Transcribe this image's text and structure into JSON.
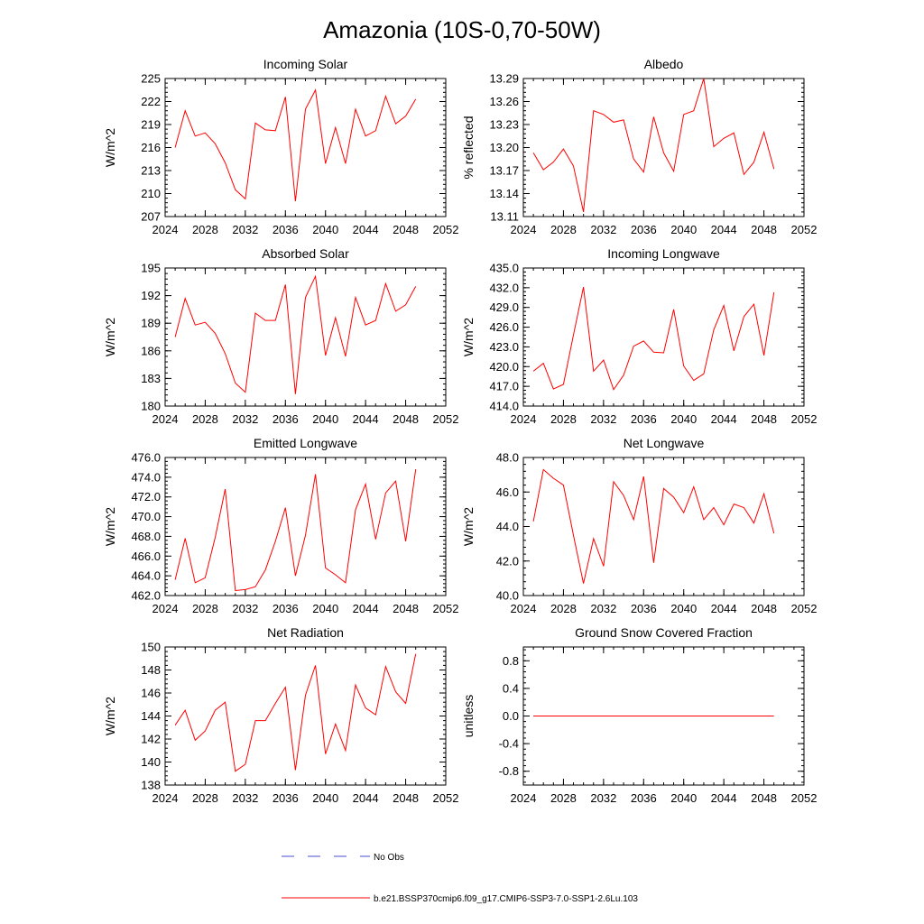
{
  "title": "Amazonia (10S-0,70-50W)",
  "legend": {
    "obs_label": "No Obs",
    "model_label": "b.e21.BSSP370cmip6.f09_g17.CMIP6-SSP3-7.0-SSP1-2.6Lu.103",
    "obs_color": "#4b4bd6",
    "model_color": "#ff0000"
  },
  "chart_data": [
    {
      "type": "line",
      "title": "Incoming Solar",
      "ylabel": "W/m^2",
      "xlim": [
        2024,
        2052
      ],
      "xticks": [
        2024,
        2028,
        2032,
        2036,
        2040,
        2044,
        2048,
        2052
      ],
      "ylim": [
        207,
        225
      ],
      "yticks": [
        "207",
        "210",
        "213",
        "216",
        "219",
        "222",
        "225"
      ],
      "x": [
        2025,
        2026,
        2027,
        2028,
        2029,
        2030,
        2031,
        2032,
        2033,
        2034,
        2035,
        2036,
        2037,
        2038,
        2039,
        2040,
        2041,
        2042,
        2043,
        2044,
        2045,
        2046,
        2047,
        2048,
        2049
      ],
      "values": [
        216.0,
        220.8,
        217.5,
        217.9,
        216.5,
        214.0,
        210.5,
        209.3,
        219.2,
        218.3,
        218.2,
        222.6,
        209.0,
        221.0,
        223.5,
        213.9,
        218.6,
        213.9,
        221.0,
        217.5,
        218.2,
        222.7,
        219.1,
        220.1,
        222.3
      ]
    },
    {
      "type": "line",
      "title": "Albedo",
      "ylabel": "% reflected",
      "xlim": [
        2024,
        2052
      ],
      "xticks": [
        2024,
        2028,
        2032,
        2036,
        2040,
        2044,
        2048,
        2052
      ],
      "ylim": [
        13.11,
        13.29
      ],
      "yticks": [
        "13.11",
        "13.14",
        "13.17",
        "13.20",
        "13.23",
        "13.26",
        "13.29"
      ],
      "x": [
        2025,
        2026,
        2027,
        2028,
        2029,
        2030,
        2031,
        2032,
        2033,
        2034,
        2035,
        2036,
        2037,
        2038,
        2039,
        2040,
        2041,
        2042,
        2043,
        2044,
        2045,
        2046,
        2047,
        2048,
        2049
      ],
      "values": [
        13.193,
        13.171,
        13.181,
        13.198,
        13.176,
        13.116,
        13.248,
        13.243,
        13.233,
        13.236,
        13.185,
        13.168,
        13.24,
        13.193,
        13.169,
        13.243,
        13.248,
        13.29,
        13.201,
        13.212,
        13.219,
        13.165,
        13.181,
        13.22,
        13.172
      ]
    },
    {
      "type": "line",
      "title": "Absorbed Solar",
      "ylabel": "W/m^2",
      "xlim": [
        2024,
        2052
      ],
      "xticks": [
        2024,
        2028,
        2032,
        2036,
        2040,
        2044,
        2048,
        2052
      ],
      "ylim": [
        180,
        195
      ],
      "yticks": [
        "180",
        "183",
        "186",
        "189",
        "192",
        "195"
      ],
      "x": [
        2025,
        2026,
        2027,
        2028,
        2029,
        2030,
        2031,
        2032,
        2033,
        2034,
        2035,
        2036,
        2037,
        2038,
        2039,
        2040,
        2041,
        2042,
        2043,
        2044,
        2045,
        2046,
        2047,
        2048,
        2049
      ],
      "values": [
        187.5,
        191.7,
        188.8,
        189.1,
        187.9,
        185.7,
        182.5,
        181.5,
        190.1,
        189.3,
        189.3,
        193.2,
        181.3,
        191.8,
        194.1,
        185.5,
        189.6,
        185.4,
        191.8,
        188.8,
        189.3,
        193.3,
        190.3,
        191.0,
        193.0
      ]
    },
    {
      "type": "line",
      "title": "Incoming Longwave",
      "ylabel": "W/m^2",
      "xlim": [
        2024,
        2052
      ],
      "xticks": [
        2024,
        2028,
        2032,
        2036,
        2040,
        2044,
        2048,
        2052
      ],
      "ylim": [
        414.0,
        435.0
      ],
      "yticks": [
        "414.0",
        "417.0",
        "420.0",
        "423.0",
        "426.0",
        "429.0",
        "432.0",
        "435.0"
      ],
      "x": [
        2025,
        2026,
        2027,
        2028,
        2029,
        2030,
        2031,
        2032,
        2033,
        2034,
        2035,
        2036,
        2037,
        2038,
        2039,
        2040,
        2041,
        2042,
        2043,
        2044,
        2045,
        2046,
        2047,
        2048,
        2049
      ],
      "values": [
        419.3,
        420.5,
        416.6,
        417.3,
        424.8,
        432.1,
        419.3,
        421.0,
        416.5,
        418.7,
        423.1,
        423.9,
        422.2,
        422.1,
        428.7,
        420.1,
        417.9,
        418.9,
        425.6,
        429.3,
        422.4,
        427.6,
        429.5,
        421.7,
        431.3
      ]
    },
    {
      "type": "line",
      "title": "Emitted Longwave",
      "ylabel": "W/m^2",
      "xlim": [
        2024,
        2052
      ],
      "xticks": [
        2024,
        2028,
        2032,
        2036,
        2040,
        2044,
        2048,
        2052
      ],
      "ylim": [
        462.0,
        476.0
      ],
      "yticks": [
        "462.0",
        "464.0",
        "466.0",
        "468.0",
        "470.0",
        "472.0",
        "474.0",
        "476.0"
      ],
      "x": [
        2025,
        2026,
        2027,
        2028,
        2029,
        2030,
        2031,
        2032,
        2033,
        2034,
        2035,
        2036,
        2037,
        2038,
        2039,
        2040,
        2041,
        2042,
        2043,
        2044,
        2045,
        2046,
        2047,
        2048,
        2049
      ],
      "values": [
        463.6,
        467.8,
        463.3,
        463.8,
        467.9,
        472.8,
        462.5,
        462.6,
        462.9,
        464.6,
        467.5,
        470.9,
        464.0,
        468.1,
        474.3,
        464.8,
        464.1,
        463.3,
        470.7,
        473.3,
        467.7,
        472.4,
        473.6,
        467.5,
        474.8
      ]
    },
    {
      "type": "line",
      "title": "Net Longwave",
      "ylabel": "W/m^2",
      "xlim": [
        2024,
        2052
      ],
      "xticks": [
        2024,
        2028,
        2032,
        2036,
        2040,
        2044,
        2048,
        2052
      ],
      "ylim": [
        40.0,
        48.0
      ],
      "yticks": [
        "40.0",
        "42.0",
        "44.0",
        "46.0",
        "48.0"
      ],
      "x": [
        2025,
        2026,
        2027,
        2028,
        2029,
        2030,
        2031,
        2032,
        2033,
        2034,
        2035,
        2036,
        2037,
        2038,
        2039,
        2040,
        2041,
        2042,
        2043,
        2044,
        2045,
        2046,
        2047,
        2048,
        2049
      ],
      "values": [
        44.3,
        47.3,
        46.8,
        46.4,
        43.5,
        40.7,
        43.3,
        41.7,
        46.6,
        45.8,
        44.4,
        46.9,
        41.9,
        46.2,
        45.7,
        44.8,
        46.3,
        44.4,
        45.1,
        44.1,
        45.3,
        45.1,
        44.2,
        45.9,
        43.6
      ]
    },
    {
      "type": "line",
      "title": "Net Radiation",
      "ylabel": "W/m^2",
      "xlim": [
        2024,
        2052
      ],
      "xticks": [
        2024,
        2028,
        2032,
        2036,
        2040,
        2044,
        2048,
        2052
      ],
      "ylim": [
        138,
        150
      ],
      "yticks": [
        "138",
        "140",
        "142",
        "144",
        "146",
        "148",
        "150"
      ],
      "x": [
        2025,
        2026,
        2027,
        2028,
        2029,
        2030,
        2031,
        2032,
        2033,
        2034,
        2035,
        2036,
        2037,
        2038,
        2039,
        2040,
        2041,
        2042,
        2043,
        2044,
        2045,
        2046,
        2047,
        2048,
        2049
      ],
      "values": [
        143.2,
        144.5,
        141.9,
        142.7,
        144.5,
        145.2,
        139.2,
        139.8,
        143.6,
        143.6,
        145.1,
        146.5,
        139.3,
        145.8,
        148.4,
        140.7,
        143.3,
        141.0,
        146.7,
        144.7,
        144.1,
        148.3,
        146.1,
        145.1,
        149.4
      ]
    },
    {
      "type": "line",
      "title": "Ground Snow Covered Fraction",
      "ylabel": "unitless",
      "xlim": [
        2024,
        2052
      ],
      "xticks": [
        2024,
        2028,
        2032,
        2036,
        2040,
        2044,
        2048,
        2052
      ],
      "ylim": [
        -1.0,
        1.0
      ],
      "yticks": [
        "-0.8",
        "-0.4",
        "0.0",
        "0.4",
        "0.8"
      ],
      "x": [
        2025,
        2026,
        2027,
        2028,
        2029,
        2030,
        2031,
        2032,
        2033,
        2034,
        2035,
        2036,
        2037,
        2038,
        2039,
        2040,
        2041,
        2042,
        2043,
        2044,
        2045,
        2046,
        2047,
        2048,
        2049
      ],
      "values": [
        0,
        0,
        0,
        0,
        0,
        0,
        0,
        0,
        0,
        0,
        0,
        0,
        0,
        0,
        0,
        0,
        0,
        0,
        0,
        0,
        0,
        0,
        0,
        0,
        0
      ]
    }
  ]
}
